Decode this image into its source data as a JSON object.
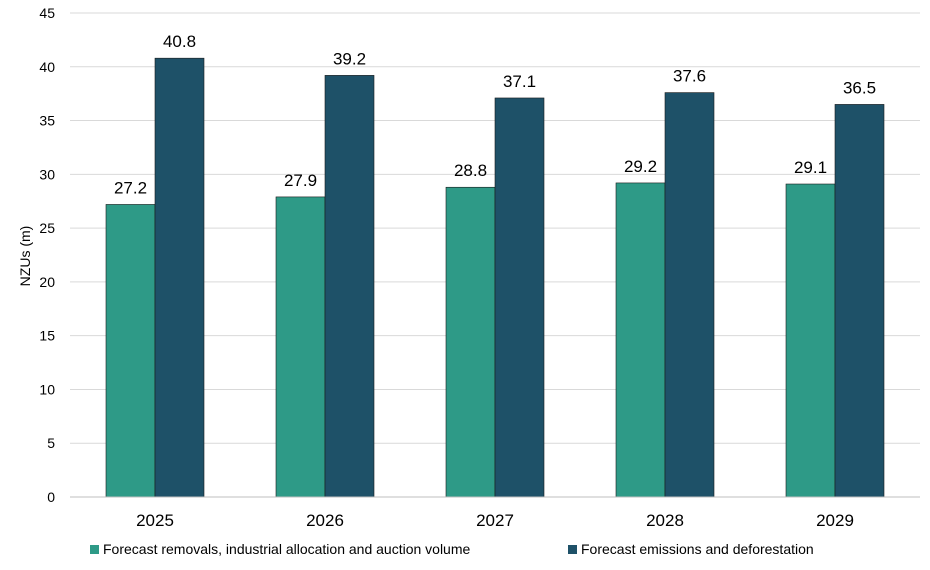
{
  "chart_data": {
    "type": "bar",
    "categories": [
      "2025",
      "2026",
      "2027",
      "2028",
      "2029"
    ],
    "series": [
      {
        "name": "Forecast removals, industrial allocation and auction volume",
        "color": "#2e9a87",
        "values": [
          27.2,
          27.9,
          28.8,
          29.2,
          29.1
        ]
      },
      {
        "name": "Forecast emissions and deforestation",
        "color": "#1e5168",
        "values": [
          40.8,
          39.2,
          37.1,
          37.6,
          36.5
        ]
      }
    ],
    "xlabel": "",
    "ylabel": "NZUs (m)",
    "ylim": [
      0,
      45
    ],
    "yticks": [
      "0",
      "5",
      "10",
      "15",
      "20",
      "25",
      "30",
      "35",
      "40",
      "45"
    ],
    "grid": true,
    "legend_position": "bottom",
    "data_labels": true
  }
}
